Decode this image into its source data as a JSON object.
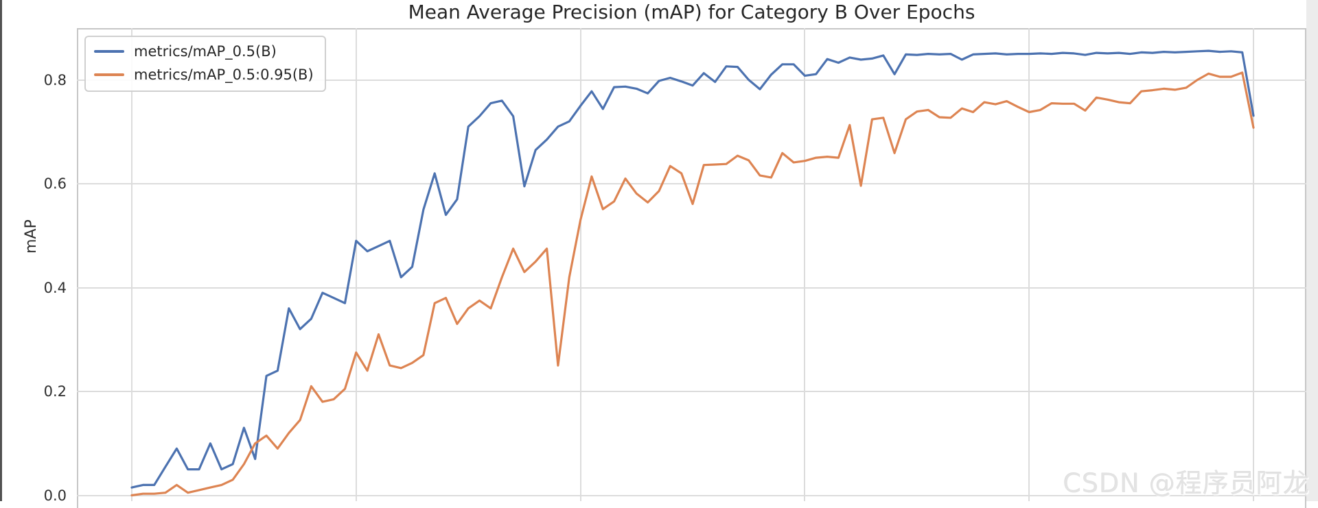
{
  "page": {
    "watermark": "CSDN @程序员阿龙",
    "background_color": "#ffffff",
    "left_edge_bar_color": "#525252",
    "right_margin_color": "#ececec"
  },
  "chart_data": {
    "type": "line",
    "title": "Mean Average Precision (mAP) for Category B Over Epochs",
    "xlabel": "",
    "ylabel": "mAP",
    "grid": true,
    "legend_position": "upper-left",
    "xlim": [
      -5,
      105
    ],
    "ylim_visible": [
      -0.01,
      0.9
    ],
    "x_gridline_epochs": [
      0,
      20,
      40,
      60,
      80,
      100
    ],
    "y_ticks": [
      0.0,
      0.2,
      0.4,
      0.6,
      0.8
    ],
    "y_tick_labels": [
      "0.0",
      "0.2",
      "0.4",
      "0.6",
      "0.8"
    ],
    "x": [
      0,
      1,
      2,
      3,
      4,
      5,
      6,
      7,
      8,
      9,
      10,
      11,
      12,
      13,
      14,
      15,
      16,
      17,
      18,
      19,
      20,
      21,
      22,
      23,
      24,
      25,
      26,
      27,
      28,
      29,
      30,
      31,
      32,
      33,
      34,
      35,
      36,
      37,
      38,
      39,
      40,
      41,
      42,
      43,
      44,
      45,
      46,
      47,
      48,
      49,
      50,
      51,
      52,
      53,
      54,
      55,
      56,
      57,
      58,
      59,
      60,
      61,
      62,
      63,
      64,
      65,
      66,
      67,
      68,
      69,
      70,
      71,
      72,
      73,
      74,
      75,
      76,
      77,
      78,
      79,
      80,
      81,
      82,
      83,
      84,
      85,
      86,
      87,
      88,
      89,
      90,
      91,
      92,
      93,
      94,
      95,
      96,
      97,
      98,
      99,
      100
    ],
    "series": [
      {
        "name": "metrics/mAP_0.5(B)",
        "color": "#4c72b0",
        "values": [
          0.015,
          0.02,
          0.02,
          0.055,
          0.09,
          0.05,
          0.05,
          0.1,
          0.05,
          0.06,
          0.13,
          0.07,
          0.23,
          0.24,
          0.36,
          0.32,
          0.34,
          0.39,
          0.38,
          0.37,
          0.49,
          0.47,
          0.48,
          0.49,
          0.42,
          0.44,
          0.55,
          0.62,
          0.54,
          0.57,
          0.71,
          0.73,
          0.755,
          0.76,
          0.73,
          0.595,
          0.665,
          0.685,
          0.71,
          0.72,
          0.75,
          0.778,
          0.744,
          0.786,
          0.787,
          0.783,
          0.774,
          0.798,
          0.804,
          0.797,
          0.789,
          0.813,
          0.796,
          0.826,
          0.825,
          0.8,
          0.782,
          0.81,
          0.83,
          0.83,
          0.808,
          0.811,
          0.84,
          0.833,
          0.843,
          0.839,
          0.841,
          0.847,
          0.811,
          0.849,
          0.848,
          0.85,
          0.849,
          0.85,
          0.839,
          0.849,
          0.85,
          0.851,
          0.849,
          0.85,
          0.85,
          0.851,
          0.85,
          0.852,
          0.851,
          0.848,
          0.852,
          0.851,
          0.852,
          0.85,
          0.853,
          0.852,
          0.854,
          0.853,
          0.854,
          0.855,
          0.856,
          0.854,
          0.855,
          0.853,
          0.731
        ]
      },
      {
        "name": "metrics/mAP_0.5:0.95(B)",
        "color": "#dd8452",
        "values": [
          0.0,
          0.003,
          0.003,
          0.005,
          0.02,
          0.005,
          0.01,
          0.015,
          0.02,
          0.03,
          0.06,
          0.1,
          0.115,
          0.09,
          0.12,
          0.145,
          0.21,
          0.18,
          0.185,
          0.205,
          0.275,
          0.24,
          0.31,
          0.25,
          0.245,
          0.255,
          0.27,
          0.37,
          0.38,
          0.33,
          0.36,
          0.375,
          0.36,
          0.42,
          0.475,
          0.43,
          0.45,
          0.475,
          0.25,
          0.42,
          0.53,
          0.614,
          0.551,
          0.566,
          0.61,
          0.581,
          0.564,
          0.586,
          0.634,
          0.62,
          0.561,
          0.636,
          0.637,
          0.638,
          0.654,
          0.645,
          0.616,
          0.612,
          0.659,
          0.641,
          0.644,
          0.65,
          0.652,
          0.65,
          0.713,
          0.596,
          0.724,
          0.727,
          0.659,
          0.724,
          0.739,
          0.742,
          0.728,
          0.727,
          0.745,
          0.738,
          0.757,
          0.753,
          0.759,
          0.748,
          0.738,
          0.742,
          0.755,
          0.754,
          0.754,
          0.741,
          0.766,
          0.762,
          0.757,
          0.755,
          0.778,
          0.78,
          0.783,
          0.781,
          0.785,
          0.8,
          0.812,
          0.806,
          0.806,
          0.814,
          0.708
        ]
      }
    ]
  }
}
